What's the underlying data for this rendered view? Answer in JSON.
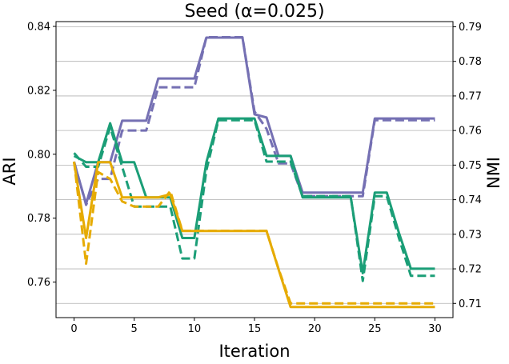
{
  "chart_data": {
    "type": "line",
    "title": "Seed (α=0.025)",
    "xlabel": "Iteration",
    "ylabel": "ARI",
    "ylabel_right": "NMI",
    "xlim": [
      -1.5,
      31.5
    ],
    "ylim": [
      0.7489,
      0.8415
    ],
    "ylim_right": [
      0.7059,
      0.7915
    ],
    "x_ticks": [
      0,
      5,
      10,
      15,
      20,
      25,
      30
    ],
    "y_ticks": [
      0.76,
      0.78,
      0.8,
      0.82,
      0.84
    ],
    "y_ticks_right": [
      0.71,
      0.72,
      0.73,
      0.74,
      0.75,
      0.76,
      0.77,
      0.78,
      0.79
    ],
    "grid": "horizontal lines at right-axis ticks",
    "x": [
      0,
      1,
      2,
      3,
      4,
      5,
      6,
      7,
      8,
      9,
      10,
      11,
      12,
      13,
      14,
      15,
      16,
      17,
      18,
      19,
      20,
      21,
      22,
      23,
      24,
      25,
      26,
      27,
      28,
      29,
      30
    ],
    "series": [
      {
        "axis": "left",
        "style": "solid",
        "color": "#7570b3",
        "values": [
          0.7975,
          0.7845,
          0.7975,
          0.7975,
          0.8105,
          0.8105,
          0.8105,
          0.8237,
          0.8237,
          0.8237,
          0.8237,
          0.8365,
          0.8365,
          0.8365,
          0.8365,
          0.8125,
          0.8115,
          0.7995,
          0.7995,
          0.788,
          0.788,
          0.788,
          0.788,
          0.788,
          0.788,
          0.8112,
          0.8112,
          0.8112,
          0.8112,
          0.8112,
          0.8112
        ]
      },
      {
        "axis": "right",
        "style": "dashed",
        "color": "#7570b3",
        "values": [
          0.751,
          0.7385,
          0.746,
          0.746,
          0.76,
          0.76,
          0.76,
          0.7725,
          0.7725,
          0.7725,
          0.7725,
          0.787,
          0.787,
          0.787,
          0.787,
          0.7655,
          0.7605,
          0.7505,
          0.7505,
          0.741,
          0.741,
          0.741,
          0.741,
          0.741,
          0.741,
          0.763,
          0.763,
          0.763,
          0.763,
          0.763,
          0.763
        ]
      },
      {
        "axis": "left",
        "style": "solid",
        "color": "#1b9e77",
        "values": [
          0.7995,
          0.7975,
          0.7975,
          0.8097,
          0.7975,
          0.7975,
          0.7865,
          0.7865,
          0.7865,
          0.7738,
          0.7738,
          0.7975,
          0.8112,
          0.8112,
          0.8112,
          0.8112,
          0.7995,
          0.7995,
          0.7995,
          0.7865,
          0.7865,
          0.7865,
          0.7865,
          0.7865,
          0.7628,
          0.788,
          0.788,
          0.7755,
          0.7642,
          0.7642,
          0.7642
        ]
      },
      {
        "axis": "right",
        "style": "dashed",
        "color": "#1b9e77",
        "values": [
          0.7535,
          0.7495,
          0.7495,
          0.761,
          0.7495,
          0.738,
          0.738,
          0.738,
          0.738,
          0.723,
          0.723,
          0.7485,
          0.763,
          0.763,
          0.763,
          0.763,
          0.751,
          0.751,
          0.751,
          0.741,
          0.741,
          0.741,
          0.741,
          0.741,
          0.7165,
          0.741,
          0.741,
          0.729,
          0.718,
          0.718,
          0.718
        ]
      },
      {
        "axis": "left",
        "style": "solid",
        "color": "#e6ab02",
        "values": [
          0.7975,
          0.7738,
          0.7975,
          0.7975,
          0.7865,
          0.7865,
          0.7865,
          0.7865,
          0.7875,
          0.776,
          0.776,
          0.776,
          0.776,
          0.776,
          0.776,
          0.776,
          0.776,
          0.764,
          0.7522,
          0.7522,
          0.7522,
          0.7522,
          0.7522,
          0.7522,
          0.7522,
          0.7522,
          0.7522,
          0.7522,
          0.7522,
          0.7522,
          0.7522
        ]
      },
      {
        "axis": "right",
        "style": "dashed",
        "color": "#e6ab02",
        "values": [
          0.751,
          0.7215,
          0.748,
          0.746,
          0.7395,
          0.738,
          0.738,
          0.738,
          0.7425,
          0.731,
          0.731,
          0.731,
          0.731,
          0.731,
          0.731,
          0.731,
          0.731,
          0.72,
          0.71,
          0.71,
          0.71,
          0.71,
          0.71,
          0.71,
          0.71,
          0.71,
          0.71,
          0.71,
          0.71,
          0.71,
          0.71
        ]
      }
    ]
  }
}
